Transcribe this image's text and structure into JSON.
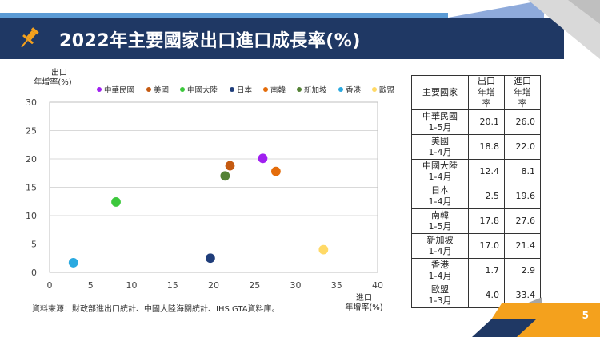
{
  "title": "2022年主要國家出口進口成長率(%)",
  "page_number": "5",
  "source": "資料來源：財政部進出口統計、中國大陸海關統計、IHS  GTA資料庫。",
  "chart_data": {
    "type": "scatter",
    "xlabel_line1": "進口",
    "xlabel_line2": "年增率(%)",
    "ylabel_line1": "出口",
    "ylabel_line2": "年增率(%)",
    "xlim": [
      0,
      40
    ],
    "ylim": [
      0,
      30
    ],
    "xticks": [
      0,
      5,
      10,
      15,
      20,
      25,
      30,
      35,
      40
    ],
    "yticks": [
      0,
      5,
      10,
      15,
      20,
      25,
      30
    ],
    "grid": "horizontal",
    "legend_position": "top",
    "series": [
      {
        "name": "中華民國",
        "color": "#a020f0",
        "x": 26.0,
        "y": 20.1
      },
      {
        "name": "美國",
        "color": "#c55a11",
        "x": 22.0,
        "y": 18.8
      },
      {
        "name": "中國大陸",
        "color": "#3cc83c",
        "x": 8.1,
        "y": 12.4
      },
      {
        "name": "日本",
        "color": "#1f3d7a",
        "x": 19.6,
        "y": 2.5
      },
      {
        "name": "南韓",
        "color": "#e46c0a",
        "x": 27.6,
        "y": 17.8
      },
      {
        "name": "新加坡",
        "color": "#548235",
        "x": 21.4,
        "y": 17.0
      },
      {
        "name": "香港",
        "color": "#2aa9e0",
        "x": 2.9,
        "y": 1.7
      },
      {
        "name": "歐盟",
        "color": "#ffd966",
        "x": 33.4,
        "y": 4.0
      }
    ]
  },
  "table": {
    "headers": [
      "主要國家",
      "出口\n年增率",
      "進口\n年增率"
    ],
    "rows": [
      {
        "country": "中華民國",
        "period": "1-5月",
        "export": "20.1",
        "import": "26.0"
      },
      {
        "country": "美國",
        "period": "1-4月",
        "export": "18.8",
        "import": "22.0"
      },
      {
        "country": "中國大陸",
        "period": "1-4月",
        "export": "12.4",
        "import": "8.1"
      },
      {
        "country": "日本",
        "period": "1-4月",
        "export": "2.5",
        "import": "19.6"
      },
      {
        "country": "南韓",
        "period": "1-5月",
        "export": "17.8",
        "import": "27.6"
      },
      {
        "country": "新加坡",
        "period": "1-4月",
        "export": "17.0",
        "import": "21.4"
      },
      {
        "country": "香港",
        "period": "1-4月",
        "export": "1.7",
        "import": "2.9"
      },
      {
        "country": "歐盟",
        "period": "1-3月",
        "export": "4.0",
        "import": "33.4"
      }
    ]
  },
  "colors": {
    "header_band": "#1f3864",
    "accent": "#f4a11d"
  },
  "icons": {
    "title_icon": "pushpin-icon"
  }
}
